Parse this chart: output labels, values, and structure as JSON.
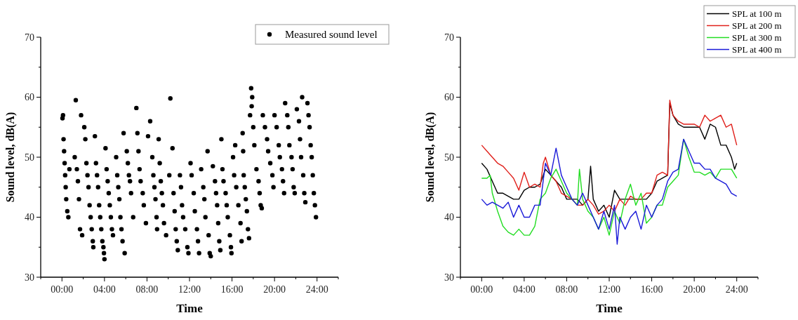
{
  "chart_data": [
    {
      "type": "scatter",
      "xlabel": "Time",
      "ylabel": "Sound level, dB(A)",
      "xlim": [
        -2,
        26
      ],
      "ylim": [
        30,
        70
      ],
      "xticks": [
        {
          "value": -2,
          "label": null
        },
        {
          "value": 0,
          "label": "00:00"
        },
        {
          "value": 2,
          "label": null
        },
        {
          "value": 4,
          "label": "04:00"
        },
        {
          "value": 6,
          "label": null
        },
        {
          "value": 8,
          "label": "08:00"
        },
        {
          "value": 10,
          "label": null
        },
        {
          "value": 12,
          "label": "12:00"
        },
        {
          "value": 14,
          "label": null
        },
        {
          "value": 16,
          "label": "16:00"
        },
        {
          "value": 18,
          "label": null
        },
        {
          "value": 20,
          "label": "20:00"
        },
        {
          "value": 22,
          "label": null
        },
        {
          "value": 24,
          "label": "24:00"
        },
        {
          "value": 26,
          "label": null
        }
      ],
      "yticks": [
        30,
        {
          "value": 35,
          "label": null
        },
        40,
        {
          "value": 45,
          "label": null
        },
        50,
        {
          "value": 55,
          "label": null
        },
        60,
        {
          "value": 65,
          "label": null
        },
        70
      ],
      "legend": "top right",
      "marker": "circle",
      "series": [
        {
          "name": "Measured sound level",
          "color": "#000000",
          "x": [
            0.05,
            0.1,
            0.15,
            0.2,
            0.25,
            0.3,
            0.35,
            0.4,
            0.5,
            0.6,
            0.7,
            1.3,
            1.8,
            1.2,
            1.4,
            1.5,
            1.6,
            1.7,
            1.9,
            2.1,
            2.2,
            2.3,
            2.4,
            2.5,
            2.6,
            2.7,
            2.8,
            2.9,
            2.95,
            3.1,
            3.2,
            3.3,
            3.4,
            3.5,
            3.6,
            3.7,
            3.8,
            3.9,
            3.95,
            4.1,
            4.2,
            4.3,
            4.4,
            4.5,
            4.6,
            4.7,
            4.8,
            4.0,
            5.1,
            5.2,
            5.3,
            5.4,
            5.5,
            5.6,
            5.7,
            5.9,
            5.8,
            6.1,
            6.2,
            6.3,
            6.4,
            6.5,
            6.7,
            7.0,
            7.1,
            7.2,
            7.3,
            7.4,
            7.6,
            7.7,
            7.9,
            8.3,
            8.1,
            8.5,
            8.6,
            8.7,
            8.8,
            8.9,
            8.95,
            9.1,
            9.2,
            9.3,
            9.4,
            9.5,
            9.6,
            9.8,
            10.2,
            10.4,
            10.1,
            10.5,
            10.6,
            10.7,
            10.8,
            10.9,
            11.1,
            11.2,
            11.3,
            11.4,
            11.6,
            11.8,
            11.9,
            12.1,
            12.2,
            12.4,
            12.5,
            12.7,
            12.8,
            12.9,
            13.7,
            13.1,
            13.3,
            13.4,
            13.5,
            13.8,
            13.9,
            14.0,
            15.0,
            14.2,
            14.4,
            14.5,
            14.6,
            14.7,
            14.8,
            14.9,
            15.1,
            15.2,
            15.4,
            15.5,
            15.6,
            15.8,
            15.9,
            15.95,
            16.3,
            16.1,
            16.2,
            16.4,
            16.6,
            16.8,
            16.9,
            17.0,
            17.05,
            17.1,
            17.2,
            17.3,
            17.4,
            17.5,
            17.6,
            17.8,
            17.9,
            17.85,
            17.7,
            18.0,
            18.1,
            18.3,
            18.5,
            18.6,
            18.7,
            18.8,
            18.9,
            19.1,
            19.3,
            19.4,
            19.6,
            19.8,
            19.9,
            20.0,
            20.2,
            20.4,
            20.5,
            20.7,
            20.8,
            20.9,
            21.0,
            21.2,
            21.3,
            21.4,
            21.6,
            21.7,
            21.8,
            21.9,
            22.6,
            22.1,
            22.3,
            22.4,
            22.5,
            22.7,
            22.8,
            22.9,
            23.1,
            23.2,
            23.3,
            23.4,
            23.5,
            23.6,
            23.7,
            23.8,
            23.9
          ],
          "values": [
            56.5,
            57,
            53,
            51,
            49,
            47,
            45,
            43,
            41,
            40,
            48,
            59.5,
            57,
            50,
            48,
            46,
            43,
            38,
            37,
            55,
            53,
            49,
            47,
            45,
            42,
            40,
            38,
            36,
            35,
            53.5,
            49,
            47,
            45,
            42,
            40,
            38,
            36,
            35,
            34,
            51.5,
            48,
            46,
            44,
            42,
            40,
            38,
            37,
            33,
            50,
            47,
            45,
            43,
            40,
            38,
            36,
            34,
            54,
            51,
            49,
            47,
            46,
            44,
            40,
            58.2,
            54,
            51,
            48,
            46,
            44,
            42,
            39,
            56,
            53.5,
            50,
            47,
            45,
            43,
            40,
            38,
            53,
            49,
            46,
            44,
            42,
            39,
            37,
            59.8,
            51.5,
            47,
            44,
            41,
            38,
            36,
            34.5,
            47,
            45,
            42,
            40,
            38,
            35,
            34,
            49,
            47,
            44,
            41,
            38,
            36,
            34,
            51,
            48,
            45,
            43,
            40,
            37,
            34,
            33.5,
            53,
            48.5,
            46,
            44,
            42,
            39,
            36,
            34.5,
            48,
            46,
            44,
            42,
            40,
            37,
            35,
            34,
            52,
            50,
            47,
            45,
            42,
            39,
            36,
            54,
            51,
            47,
            45,
            43,
            41,
            38,
            36.5,
            61.5,
            60,
            58.5,
            57,
            55,
            52,
            48,
            46,
            44,
            42,
            41.5,
            57,
            55,
            53,
            51,
            49,
            47,
            45,
            57,
            55,
            52,
            50,
            48,
            46,
            44,
            59,
            57,
            55,
            52,
            50,
            48,
            45,
            44,
            60,
            58,
            56,
            53,
            50,
            47,
            44,
            42.5,
            59,
            57,
            55,
            52,
            50,
            47,
            44,
            42,
            40
          ]
        }
      ]
    },
    {
      "type": "line",
      "xlabel": "Time",
      "ylabel": "Sound level, dB(A)",
      "xlim": [
        -2,
        26
      ],
      "ylim": [
        30,
        70
      ],
      "xticks": [
        {
          "value": -2,
          "label": null
        },
        {
          "value": 0,
          "label": "00:00"
        },
        {
          "value": 2,
          "label": null
        },
        {
          "value": 4,
          "label": "04:00"
        },
        {
          "value": 6,
          "label": null
        },
        {
          "value": 8,
          "label": "08:00"
        },
        {
          "value": 10,
          "label": null
        },
        {
          "value": 12,
          "label": "12:00"
        },
        {
          "value": 14,
          "label": null
        },
        {
          "value": 16,
          "label": "16:00"
        },
        {
          "value": 18,
          "label": null
        },
        {
          "value": 20,
          "label": "20:00"
        },
        {
          "value": 22,
          "label": null
        },
        {
          "value": 24,
          "label": "24:00"
        },
        {
          "value": 26,
          "label": null
        }
      ],
      "yticks": [
        30,
        {
          "value": 35,
          "label": null
        },
        40,
        {
          "value": 45,
          "label": null
        },
        50,
        {
          "value": 55,
          "label": null
        },
        60,
        {
          "value": 65,
          "label": null
        },
        70
      ],
      "legend": "top right",
      "line_style": "solid",
      "series": [
        {
          "name": "SPL at 100 m",
          "color": "#000000",
          "x": [
            0,
            0.5,
            1,
            1.5,
            2,
            2.5,
            3,
            3.5,
            4,
            4.5,
            5,
            5.5,
            6,
            6.5,
            7,
            7.5,
            8,
            8.5,
            9,
            9.5,
            10,
            10.25,
            10.5,
            11,
            11.5,
            12,
            12.5,
            13,
            13.5,
            14,
            14.5,
            15,
            15.5,
            16,
            16.5,
            17,
            17.5,
            17.7,
            18,
            18.5,
            19,
            19.5,
            20,
            20.5,
            21,
            21.5,
            22,
            22.5,
            23,
            23.5,
            23.8,
            24
          ],
          "values": [
            49,
            48,
            46,
            44,
            44,
            43.5,
            43,
            43,
            44.5,
            45,
            45,
            45.5,
            48,
            47,
            46,
            45,
            43,
            43,
            43,
            42,
            43,
            48.5,
            43,
            41,
            42,
            40,
            44.5,
            43,
            43,
            43,
            43,
            43,
            43,
            44,
            46,
            46.5,
            47,
            59,
            57,
            55.5,
            55,
            55,
            55,
            55,
            53,
            55.5,
            55,
            52,
            52,
            50,
            48,
            49
          ]
        },
        {
          "name": "SPL at 200 m",
          "color": "#e0201b",
          "x": [
            0,
            0.5,
            1,
            1.5,
            2,
            2.5,
            3,
            3.5,
            4,
            4.5,
            5,
            5.5,
            5.8,
            6,
            6.5,
            7,
            7.5,
            8,
            8.5,
            9,
            9.5,
            10,
            10.5,
            11,
            11.5,
            12,
            12.5,
            13,
            13.5,
            14,
            14.5,
            15,
            15.5,
            16,
            16.5,
            17,
            17.5,
            17.7,
            18,
            18.5,
            19,
            19.5,
            20,
            20.5,
            21,
            21.5,
            22,
            22.5,
            23,
            23.5,
            24
          ],
          "values": [
            52,
            51,
            50,
            49,
            48.5,
            47.5,
            46.5,
            44.5,
            47.5,
            45,
            45.5,
            45,
            49,
            50,
            47,
            46,
            44,
            43.5,
            43,
            42,
            42,
            43,
            42,
            40.5,
            41,
            42,
            41,
            43,
            42,
            43.5,
            43,
            43,
            44,
            44,
            47,
            47.5,
            47,
            59.5,
            57,
            56,
            55.5,
            55.5,
            55.5,
            55,
            57,
            56,
            56.5,
            57,
            55,
            55.5,
            52
          ]
        },
        {
          "name": "SPL at 300 m",
          "color": "#22dd22",
          "x": [
            0,
            0.5,
            0.8,
            1,
            1.5,
            2,
            2.5,
            3,
            3.5,
            4,
            4.5,
            5,
            5.5,
            6,
            6.5,
            7,
            7.5,
            8,
            8.5,
            9,
            9.2,
            9.5,
            10,
            10.5,
            11,
            11.5,
            12,
            12.5,
            13,
            13.5,
            14,
            14.5,
            15,
            15.5,
            16,
            16.5,
            17,
            17.5,
            18,
            18.5,
            19,
            19.5,
            20,
            20.5,
            21,
            21.5,
            22,
            22.5,
            23,
            23.5,
            24
          ],
          "values": [
            46.5,
            46.5,
            47,
            44,
            41,
            38.5,
            37.5,
            37,
            38,
            37,
            37,
            38.5,
            43,
            44,
            46.5,
            48,
            46,
            44,
            43,
            42,
            48,
            43,
            41,
            40,
            38,
            40,
            37,
            41,
            39,
            43,
            45.5,
            42,
            44,
            39,
            40,
            42,
            42,
            45,
            46,
            47,
            53,
            50,
            47.5,
            47.5,
            47,
            47.5,
            46.5,
            48,
            48,
            48,
            46.5
          ]
        },
        {
          "name": "SPL at 400 m",
          "color": "#1a1ad8",
          "x": [
            0,
            0.5,
            1,
            1.5,
            2,
            2.5,
            3,
            3.5,
            4,
            4.5,
            5,
            5.5,
            6,
            6.5,
            7,
            7.5,
            8,
            8.5,
            9,
            9.5,
            10,
            10.5,
            11,
            11.5,
            12,
            12.5,
            12.75,
            13,
            13.5,
            14,
            14.5,
            15,
            15.5,
            16,
            16.5,
            17,
            17.5,
            18,
            18.5,
            19,
            19.5,
            20,
            20.5,
            21,
            21.5,
            22,
            22.5,
            23,
            23.5,
            24
          ],
          "values": [
            43,
            42,
            42.5,
            42,
            41.5,
            42.5,
            40,
            42,
            40,
            40,
            42,
            42,
            49,
            47,
            51.5,
            47,
            45,
            43,
            42,
            44,
            42,
            40,
            38,
            41,
            38,
            42,
            35.5,
            40,
            38,
            40,
            41,
            38,
            42,
            40,
            42,
            43,
            46,
            47.5,
            48,
            53,
            51,
            49,
            49,
            48,
            48,
            46.5,
            46,
            45.5,
            44,
            43.5
          ]
        }
      ]
    }
  ]
}
